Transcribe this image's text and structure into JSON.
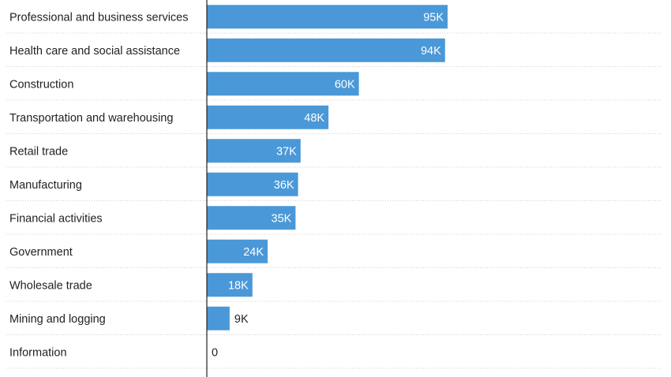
{
  "chart_data": {
    "type": "bar",
    "orientation": "horizontal",
    "categories": [
      "Professional and business services",
      "Health care and social assistance",
      "Construction",
      "Transportation and warehousing",
      "Retail trade",
      "Manufacturing",
      "Financial activities",
      "Government",
      "Wholesale trade",
      "Mining and logging",
      "Information"
    ],
    "values": [
      95000,
      94000,
      60000,
      48000,
      37000,
      36000,
      35000,
      24000,
      18000,
      9000,
      0
    ],
    "value_labels": [
      "95K",
      "94K",
      "60K",
      "48K",
      "37K",
      "36K",
      "35K",
      "24K",
      "18K",
      "9K",
      "0"
    ],
    "title": "",
    "xlabel": "",
    "ylabel": "",
    "xlim": [
      0,
      95000
    ],
    "grid": true,
    "legend": "none",
    "bar_color": "#4a98d8"
  }
}
